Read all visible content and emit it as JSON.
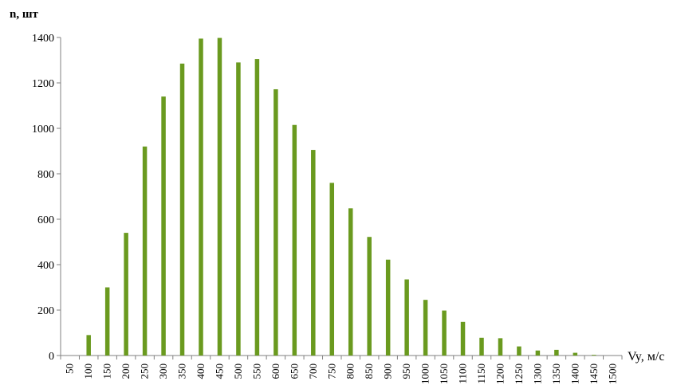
{
  "chart_data": {
    "type": "bar",
    "ylabel": "n, шт",
    "xlabel": "Vy, м/с",
    "categories": [
      "50",
      "100",
      "150",
      "200",
      "250",
      "300",
      "350",
      "400",
      "450",
      "500",
      "550",
      "600",
      "650",
      "700",
      "750",
      "800",
      "850",
      "900",
      "950",
      "1000",
      "1050",
      "1100",
      "1150",
      "1200",
      "1250",
      "1300",
      "1350",
      "1400",
      "1450",
      "1500"
    ],
    "values": [
      0,
      90,
      300,
      540,
      920,
      1140,
      1285,
      1395,
      1398,
      1290,
      1305,
      1172,
      1015,
      905,
      760,
      648,
      522,
      422,
      335,
      245,
      198,
      148,
      78,
      76,
      40,
      22,
      25,
      12,
      3,
      0
    ],
    "ylim": [
      0,
      1400
    ],
    "yticks": [
      0,
      200,
      400,
      600,
      800,
      1000,
      1200,
      1400
    ],
    "grid": false,
    "legend": "none",
    "bar_color": "#6a9a1f",
    "axis_color": "#808080"
  }
}
